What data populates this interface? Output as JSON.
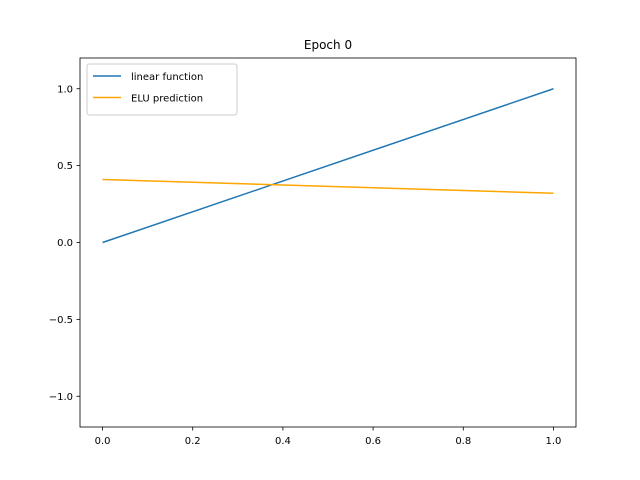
{
  "chart_data": {
    "type": "line",
    "title": "Epoch 0",
    "xlabel": "",
    "ylabel": "",
    "xlim": [
      -0.05,
      1.05
    ],
    "ylim": [
      -1.2,
      1.2
    ],
    "x_ticks": [
      0.0,
      0.2,
      0.4,
      0.6,
      0.8,
      1.0
    ],
    "x_tick_labels": [
      "0.0",
      "0.2",
      "0.4",
      "0.6",
      "0.8",
      "1.0"
    ],
    "y_ticks": [
      1.0,
      0.5,
      0.0,
      -0.5,
      -1.0
    ],
    "y_tick_labels": [
      "1.0",
      "0.5",
      "0.0",
      "−0.5",
      "−1.0"
    ],
    "grid": false,
    "legend_position": "upper-left",
    "series": [
      {
        "name": "linear function",
        "color": "#1f77b4",
        "x": [
          0.0,
          1.0
        ],
        "y": [
          0.0,
          1.0
        ]
      },
      {
        "name": "ELU prediction",
        "color": "#ffa500",
        "x": [
          0.0,
          1.0
        ],
        "y": [
          0.41,
          0.32
        ]
      }
    ]
  }
}
